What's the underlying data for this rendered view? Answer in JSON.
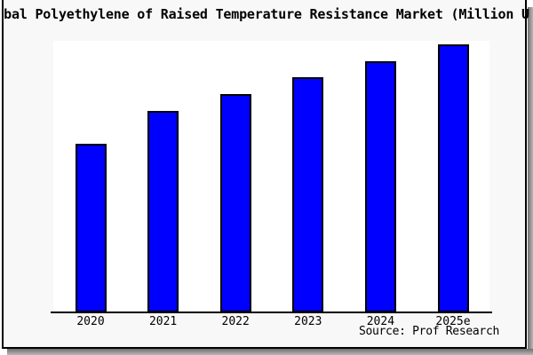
{
  "title": {
    "text": "bal Polyethylene of Raised Temperature Resistance Market (Million U"
  },
  "source": {
    "text": "Source: Prof Research"
  },
  "x_axis": {
    "labels": [
      "2020",
      "2021",
      "2022",
      "2023",
      "2024",
      "2025e"
    ]
  },
  "colors": {
    "bar_fill": "#0000ff",
    "bar_edge": "#000000",
    "plot_bg": "#ffffff",
    "figure_bg": "#f8f8f8",
    "card_border": "#000000",
    "shadow": "#6e6e6e",
    "text": "#000000"
  },
  "chart_data": {
    "type": "bar",
    "title": "bal Polyethylene of Raised Temperature Resistance Market (Million U",
    "categories": [
      "2020",
      "2021",
      "2022",
      "2023",
      "2024",
      "2025e"
    ],
    "values": [
      190,
      227,
      246,
      265,
      283,
      302
    ],
    "value_unit": "bar height in pixels; no y-axis scale or value labels are shown",
    "series_color": "#0000ff",
    "xlabel": "",
    "ylabel": "",
    "grid": false,
    "legend": false,
    "y_axis_visible": false,
    "source": "Source: Prof Research"
  }
}
